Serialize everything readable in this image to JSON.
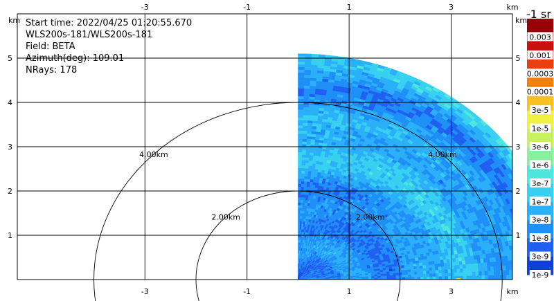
{
  "chart_data": {
    "type": "heatmap",
    "plot_kind": "radar-sector-ppi",
    "info": {
      "start_time": "Start time: 2022/04/25 01:20:55.670",
      "instrument": "WLS200s-181/WLS200s-181",
      "field": "Field: BETA",
      "azimuth": "Azimuth(deg): 109.01",
      "nrays": "NRays: 178"
    },
    "x_axis": {
      "unit": "km",
      "range": [
        -5.5,
        4.2
      ],
      "ticks": [
        -3,
        -1,
        1,
        3
      ],
      "tick_labels": [
        "-3",
        "-1",
        "1",
        "3"
      ]
    },
    "y_axis": {
      "unit": "km",
      "range": [
        0,
        6.0
      ],
      "ticks": [
        1,
        2,
        3,
        4,
        5
      ],
      "tick_labels": [
        "1",
        "2",
        "3",
        "4",
        "5"
      ]
    },
    "grid": true,
    "range_rings": [
      {
        "radius_km": 2.0,
        "label": "2.00km"
      },
      {
        "radius_km": 4.0,
        "label": "4.00km"
      }
    ],
    "sector": {
      "radius_km": 5.1,
      "start_deg": 0,
      "end_deg": 90
    },
    "colorbar": {
      "title": "-1 sr",
      "position": "right",
      "levels": [
        "1e-9",
        "3e-9",
        "1e-8",
        "3e-8",
        "1e-7",
        "3e-7",
        "1e-6",
        "3e-6",
        "1e-5",
        "3e-5",
        "0.0001",
        "0.0003",
        "0.001",
        "0.003"
      ],
      "colors": [
        "#1040d8",
        "#2060f0",
        "#1f8ff8",
        "#2ab0f8",
        "#38d0f0",
        "#4ee6dd",
        "#8af0a0",
        "#c8f060",
        "#f0f040",
        "#f8c020",
        "#f08010",
        "#e84010",
        "#c81010",
        "#980008"
      ]
    }
  }
}
